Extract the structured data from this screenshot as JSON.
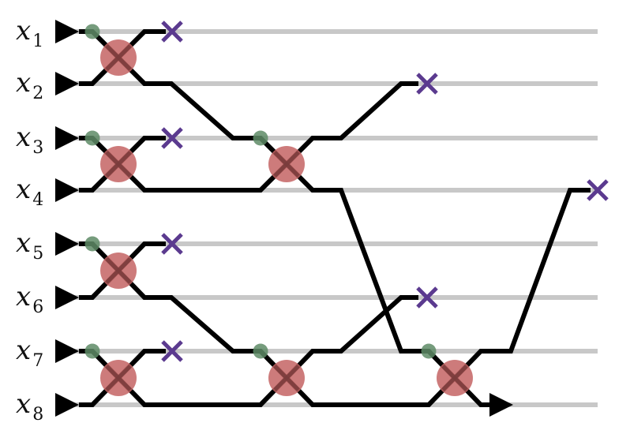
{
  "wires": [
    {
      "base": "x",
      "sub": "1"
    },
    {
      "base": "x",
      "sub": "2"
    },
    {
      "base": "x",
      "sub": "3"
    },
    {
      "base": "x",
      "sub": "4"
    },
    {
      "base": "x",
      "sub": "5"
    },
    {
      "base": "x",
      "sub": "6"
    },
    {
      "base": "x",
      "sub": "7"
    },
    {
      "base": "x",
      "sub": "8"
    }
  ],
  "colors": {
    "track": "#c8c8c8",
    "path": "#000000",
    "comparator": "#c46464",
    "winner_dot": "#5e8b66",
    "eliminated": "#5b3a8f"
  },
  "icons": {
    "input": "arrowhead-icon",
    "eliminated": "purple-x-icon",
    "comparator": "red-circle-swap-icon",
    "winner": "green-dot-icon",
    "output": "arrowhead-icon"
  }
}
